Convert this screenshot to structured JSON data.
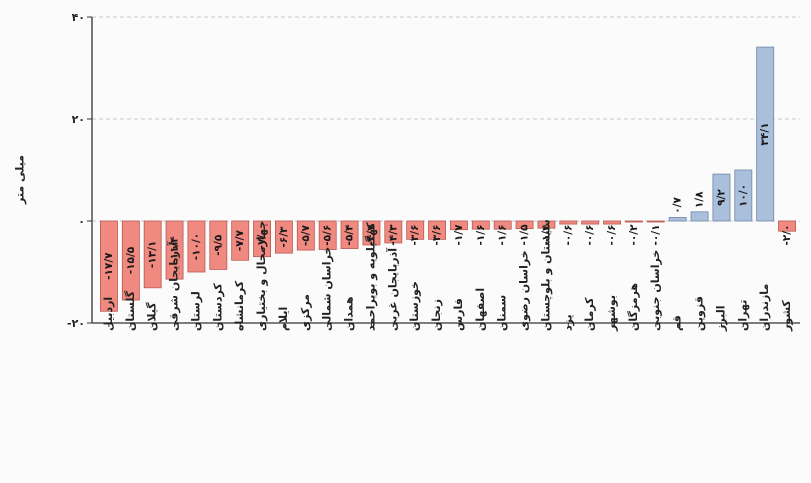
{
  "chart_data": {
    "type": "bar",
    "ylabel": "میلی متر",
    "ylim": [
      -20,
      40
    ],
    "yticks": [
      {
        "value": 40,
        "label": "۴۰"
      },
      {
        "value": 20,
        "label": "۲۰"
      },
      {
        "value": 0,
        "label": "۰"
      },
      {
        "value": -20,
        "label": "-۲۰"
      }
    ],
    "grid": true,
    "colors": {
      "negative": "#f08a80",
      "positive": "#a9bfdc",
      "negative_edge": "#b85a52",
      "positive_edge": "#6f87a8",
      "axis": "#333333",
      "grid": "#c8c8c8"
    },
    "categories": [
      "اردبیل",
      "گلستان",
      "گیلان",
      "آذربایجان شرقی",
      "لرستان",
      "کردستان",
      "کرمانشاه",
      "چهارمحال و بختیاری",
      "ایلام",
      "مرکزی",
      "خراسان شمالی",
      "همدان",
      "کهگیلویه و بویراحمد",
      "آذربایجان غربی",
      "خوزستان",
      "زنجان",
      "فارس",
      "اصفهان",
      "سمنان",
      "خراسان رضوی",
      "سیستان و بلوچستان",
      "یزد",
      "کرمان",
      "بوشهر",
      "هرمزگان",
      "خراسان جنوبی",
      "قم",
      "قزوین",
      "البرز",
      "تهران",
      "مازندران",
      "کشور"
    ],
    "values": [
      -17.7,
      -15.5,
      -13.1,
      -11.4,
      -10.0,
      -9.5,
      -7.7,
      -7.0,
      -6.3,
      -5.7,
      -5.6,
      -5.4,
      -4.7,
      -4.3,
      -3.6,
      -3.6,
      -1.7,
      -1.6,
      -1.6,
      -1.5,
      -1.4,
      -0.6,
      -0.6,
      -0.6,
      -0.2,
      -0.1,
      0.7,
      1.8,
      9.2,
      10.0,
      34.1,
      -2.0
    ],
    "labels": [
      "-۱۷/۷",
      "-۱۵/۵",
      "-۱۳/۱",
      "-۱۱/۴",
      "-۱۰/۰",
      "-۹/۵",
      "-۷/۷",
      "-۷/۰",
      "-۶/۳",
      "-۵/۷",
      "-۵/۶",
      "-۵/۴",
      "-۴/۷",
      "-۴/۳",
      "-۳/۶",
      "-۳/۶",
      "-۱/۷",
      "-۱/۶",
      "-۱/۶",
      "-۱/۵",
      "-۱/۴",
      "-۰/۶",
      "-۰/۶",
      "-۰/۶",
      "-۰/۲",
      "-۰/۱",
      "۰/۷",
      "۱/۸",
      "۹/۲",
      "۱۰/۰",
      "۳۴/۱",
      "-۲/۰"
    ]
  }
}
